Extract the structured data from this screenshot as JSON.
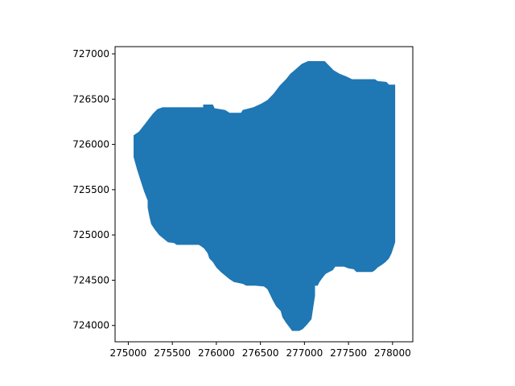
{
  "chart_data": {
    "type": "area",
    "title": "",
    "xlabel": "",
    "ylabel": "",
    "xlim": [
      274850,
      278230
    ],
    "ylim": [
      723820,
      727080
    ],
    "x_ticks": [
      275000,
      275500,
      276000,
      276500,
      277000,
      277500,
      278000
    ],
    "y_ticks": [
      724000,
      724500,
      725000,
      725500,
      726000,
      726500,
      727000
    ],
    "x_tick_labels": [
      "275000",
      "275500",
      "276000",
      "276500",
      "277000",
      "277500",
      "278000"
    ],
    "y_tick_labels": [
      "724000",
      "724500",
      "725000",
      "725500",
      "726000",
      "726500",
      "727000"
    ],
    "grid": false,
    "fill_color": "#1f77b4",
    "polygon": [
      [
        275060,
        726100
      ],
      [
        275120,
        726140
      ],
      [
        275160,
        726190
      ],
      [
        275200,
        726240
      ],
      [
        275240,
        726290
      ],
      [
        275280,
        726340
      ],
      [
        275330,
        726390
      ],
      [
        275390,
        726410
      ],
      [
        275850,
        726410
      ],
      [
        275850,
        726440
      ],
      [
        275960,
        726440
      ],
      [
        275980,
        726400
      ],
      [
        276100,
        726380
      ],
      [
        276150,
        726350
      ],
      [
        276280,
        726350
      ],
      [
        276300,
        726380
      ],
      [
        276420,
        726410
      ],
      [
        276510,
        726450
      ],
      [
        276580,
        726490
      ],
      [
        276650,
        726560
      ],
      [
        276720,
        726650
      ],
      [
        276790,
        726720
      ],
      [
        276840,
        726780
      ],
      [
        276900,
        726830
      ],
      [
        276970,
        726890
      ],
      [
        277040,
        726920
      ],
      [
        277230,
        726920
      ],
      [
        277270,
        726880
      ],
      [
        277330,
        726820
      ],
      [
        277400,
        726780
      ],
      [
        277480,
        726750
      ],
      [
        277540,
        726720
      ],
      [
        277800,
        726720
      ],
      [
        277830,
        726700
      ],
      [
        277930,
        726690
      ],
      [
        277960,
        726660
      ],
      [
        278030,
        726660
      ],
      [
        278030,
        724920
      ],
      [
        277990,
        724800
      ],
      [
        277960,
        724740
      ],
      [
        277920,
        724700
      ],
      [
        277880,
        724670
      ],
      [
        277830,
        724640
      ],
      [
        277800,
        724610
      ],
      [
        277770,
        724590
      ],
      [
        277590,
        724590
      ],
      [
        277560,
        724620
      ],
      [
        277500,
        724630
      ],
      [
        277450,
        724650
      ],
      [
        277350,
        724650
      ],
      [
        277320,
        724610
      ],
      [
        277280,
        724590
      ],
      [
        277240,
        724570
      ],
      [
        277200,
        724520
      ],
      [
        277170,
        724480
      ],
      [
        277150,
        724440
      ],
      [
        277120,
        724440
      ],
      [
        277120,
        724330
      ],
      [
        277100,
        724200
      ],
      [
        277080,
        724070
      ],
      [
        277030,
        724010
      ],
      [
        276980,
        723960
      ],
      [
        276940,
        723940
      ],
      [
        276860,
        723940
      ],
      [
        276830,
        723980
      ],
      [
        276790,
        724030
      ],
      [
        276750,
        724090
      ],
      [
        276730,
        724160
      ],
      [
        276680,
        724210
      ],
      [
        276640,
        724280
      ],
      [
        276610,
        724340
      ],
      [
        276580,
        724400
      ],
      [
        276540,
        724430
      ],
      [
        276440,
        724440
      ],
      [
        276340,
        724440
      ],
      [
        276300,
        724460
      ],
      [
        276200,
        724480
      ],
      [
        276150,
        724510
      ],
      [
        276100,
        724550
      ],
      [
        276050,
        724590
      ],
      [
        276000,
        724640
      ],
      [
        275960,
        724700
      ],
      [
        275920,
        724740
      ],
      [
        275900,
        724800
      ],
      [
        275860,
        724850
      ],
      [
        275820,
        724880
      ],
      [
        275800,
        724890
      ],
      [
        275550,
        724890
      ],
      [
        275520,
        724910
      ],
      [
        275450,
        724920
      ],
      [
        275400,
        724960
      ],
      [
        275350,
        725000
      ],
      [
        275300,
        725060
      ],
      [
        275260,
        725120
      ],
      [
        275240,
        725200
      ],
      [
        275220,
        725300
      ],
      [
        275220,
        725380
      ],
      [
        275200,
        725430
      ],
      [
        275180,
        725480
      ],
      [
        275160,
        725540
      ],
      [
        275140,
        725600
      ],
      [
        275120,
        725660
      ],
      [
        275100,
        725720
      ],
      [
        275080,
        725790
      ],
      [
        275060,
        725860
      ],
      [
        275060,
        725940
      ]
    ]
  }
}
